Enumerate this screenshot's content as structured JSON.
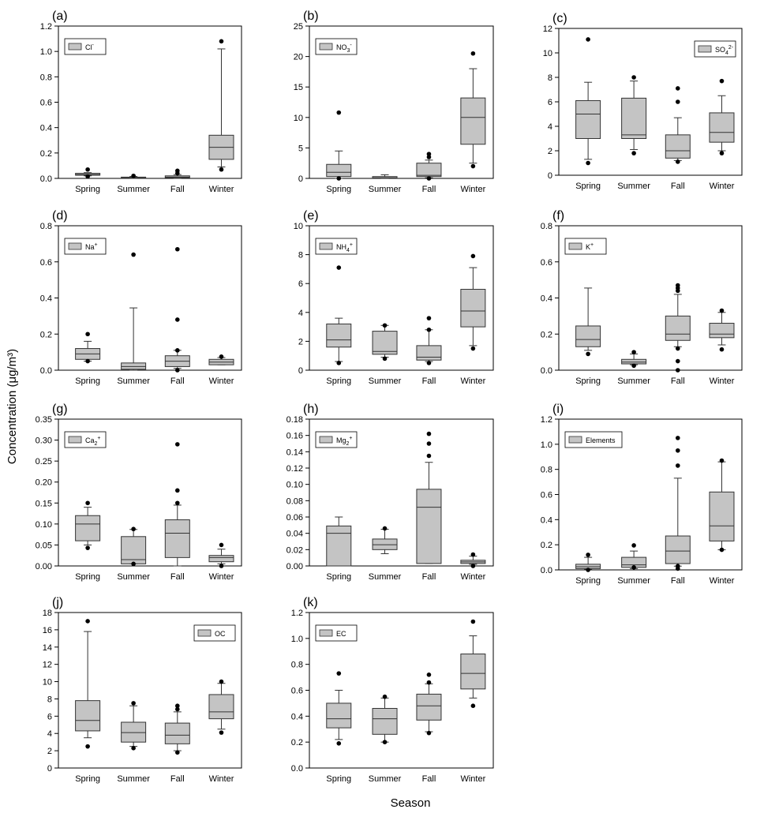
{
  "figure": {
    "ylabel": "Concentration (μg/m³)",
    "xlabel": "Season"
  },
  "chart_data": [
    {
      "panel": "(a)",
      "type": "box",
      "legend": {
        "base": "Cl",
        "sup": "-"
      },
      "legend_loc": "top-left",
      "categories": [
        "Spring",
        "Summer",
        "Fall",
        "Winter"
      ],
      "ylim": [
        0,
        1.2
      ],
      "yticks": [
        "0.0",
        "0.2",
        "0.4",
        "0.6",
        "0.8",
        "1.0",
        "1.2"
      ],
      "boxes": [
        {
          "min": 0.02,
          "q1": 0.025,
          "median": 0.03,
          "q3": 0.04,
          "max": 0.045,
          "outliers": [
            0.07,
            0.015
          ]
        },
        {
          "min": 0.0,
          "q1": 0.002,
          "median": 0.005,
          "q3": 0.01,
          "max": 0.015,
          "outliers": [
            0.02
          ]
        },
        {
          "min": 0.0,
          "q1": 0.005,
          "median": 0.01,
          "q3": 0.02,
          "max": 0.03,
          "outliers": [
            0.06,
            0.04
          ]
        },
        {
          "min": 0.09,
          "q1": 0.15,
          "median": 0.245,
          "q3": 0.34,
          "max": 1.02,
          "outliers": [
            1.08,
            0.07
          ]
        }
      ]
    },
    {
      "panel": "(b)",
      "type": "box",
      "legend": {
        "base": "NO",
        "sub": "3",
        "sup": "-"
      },
      "legend_loc": "top-left",
      "categories": [
        "Spring",
        "Summer",
        "Fall",
        "Winter"
      ],
      "ylim": [
        0,
        25
      ],
      "yticks": [
        "0",
        "5",
        "10",
        "15",
        "20",
        "25"
      ],
      "boxes": [
        {
          "min": 0.0,
          "q1": 0.3,
          "median": 1.0,
          "q3": 2.3,
          "max": 4.5,
          "outliers": [
            10.8,
            0.0
          ]
        },
        {
          "min": 0.0,
          "q1": 0.05,
          "median": 0.1,
          "q3": 0.3,
          "max": 0.6,
          "outliers": []
        },
        {
          "min": 0.1,
          "q1": 0.3,
          "median": 0.5,
          "q3": 2.5,
          "max": 3.0,
          "outliers": [
            4.0,
            3.5,
            0.0
          ]
        },
        {
          "min": 2.5,
          "q1": 5.6,
          "median": 10.0,
          "q3": 13.2,
          "max": 18.0,
          "outliers": [
            20.5,
            2.0
          ]
        }
      ]
    },
    {
      "panel": "(c)",
      "type": "box",
      "legend": {
        "base": "SO",
        "sub": "4",
        "sup": "2-"
      },
      "legend_loc": "top-right",
      "categories": [
        "Spring",
        "Summer",
        "Fall",
        "Winter"
      ],
      "ylim": [
        0,
        12
      ],
      "yticks": [
        "0",
        "2",
        "4",
        "6",
        "8",
        "10",
        "12"
      ],
      "boxes": [
        {
          "min": 1.3,
          "q1": 3.0,
          "median": 5.0,
          "q3": 6.1,
          "max": 7.6,
          "outliers": [
            11.1,
            1.0
          ]
        },
        {
          "min": 2.1,
          "q1": 3.0,
          "median": 3.3,
          "q3": 6.3,
          "max": 7.7,
          "outliers": [
            8.0,
            1.8
          ]
        },
        {
          "min": 1.2,
          "q1": 1.4,
          "median": 2.0,
          "q3": 3.3,
          "max": 4.7,
          "outliers": [
            7.1,
            6.0,
            1.1
          ]
        },
        {
          "min": 2.0,
          "q1": 2.7,
          "median": 3.5,
          "q3": 5.1,
          "max": 6.5,
          "outliers": [
            7.7,
            1.8
          ]
        }
      ]
    },
    {
      "panel": "(d)",
      "type": "box",
      "legend": {
        "base": "Na",
        "sup": "+"
      },
      "legend_loc": "top-left",
      "categories": [
        "Spring",
        "Summer",
        "Fall",
        "Winter"
      ],
      "ylim": [
        0,
        0.8
      ],
      "yticks": [
        "0.0",
        "0.2",
        "0.4",
        "0.6",
        "0.8"
      ],
      "boxes": [
        {
          "min": 0.05,
          "q1": 0.06,
          "median": 0.09,
          "q3": 0.12,
          "max": 0.16,
          "outliers": [
            0.2,
            0.05
          ]
        },
        {
          "min": 0.0,
          "q1": 0.005,
          "median": 0.02,
          "q3": 0.04,
          "max": 0.345,
          "outliers": [
            0.64
          ]
        },
        {
          "min": 0.01,
          "q1": 0.02,
          "median": 0.05,
          "q3": 0.08,
          "max": 0.11,
          "outliers": [
            0.67,
            0.28,
            0.11,
            0.0
          ]
        },
        {
          "min": 0.03,
          "q1": 0.03,
          "median": 0.045,
          "q3": 0.06,
          "max": 0.07,
          "outliers": [
            0.075
          ]
        }
      ]
    },
    {
      "panel": "(e)",
      "type": "box",
      "legend": {
        "base": "NH",
        "sub": "4",
        "sup": "+"
      },
      "legend_loc": "top-left",
      "categories": [
        "Spring",
        "Summer",
        "Fall",
        "Winter"
      ],
      "ylim": [
        0,
        10
      ],
      "yticks": [
        "0",
        "2",
        "4",
        "6",
        "8",
        "10"
      ],
      "boxes": [
        {
          "min": 0.6,
          "q1": 1.6,
          "median": 2.1,
          "q3": 3.2,
          "max": 3.6,
          "outliers": [
            7.1,
            0.5
          ]
        },
        {
          "min": 0.9,
          "q1": 1.1,
          "median": 1.3,
          "q3": 2.7,
          "max": 3.1,
          "outliers": [
            3.1,
            0.8
          ]
        },
        {
          "min": 0.6,
          "q1": 0.7,
          "median": 0.9,
          "q3": 1.7,
          "max": 2.8,
          "outliers": [
            3.6,
            2.8,
            0.5
          ]
        },
        {
          "min": 1.7,
          "q1": 3.0,
          "median": 4.1,
          "q3": 5.6,
          "max": 7.1,
          "outliers": [
            7.9,
            1.5
          ]
        }
      ]
    },
    {
      "panel": "(f)",
      "type": "box",
      "legend": {
        "base": "K",
        "sup": "+"
      },
      "legend_loc": "top-left",
      "categories": [
        "Spring",
        "Summer",
        "Fall",
        "Winter"
      ],
      "ylim": [
        0,
        0.8
      ],
      "yticks": [
        "0.0",
        "0.2",
        "0.4",
        "0.6",
        "0.8"
      ],
      "boxes": [
        {
          "min": 0.11,
          "q1": 0.13,
          "median": 0.17,
          "q3": 0.245,
          "max": 0.455,
          "outliers": [
            0.09
          ]
        },
        {
          "min": 0.03,
          "q1": 0.035,
          "median": 0.045,
          "q3": 0.06,
          "max": 0.09,
          "outliers": [
            0.1,
            0.025
          ]
        },
        {
          "min": 0.13,
          "q1": 0.165,
          "median": 0.2,
          "q3": 0.3,
          "max": 0.42,
          "outliers": [
            0.47,
            0.455,
            0.44,
            0.12,
            0.05,
            0.0
          ]
        },
        {
          "min": 0.14,
          "q1": 0.18,
          "median": 0.2,
          "q3": 0.26,
          "max": 0.32,
          "outliers": [
            0.33,
            0.115
          ]
        }
      ]
    },
    {
      "panel": "(g)",
      "type": "box",
      "legend": {
        "base": "Ca",
        "sub": "2",
        "sup": "+"
      },
      "legend_loc": "top-left",
      "categories": [
        "Spring",
        "Summer",
        "Fall",
        "Winter"
      ],
      "ylim": [
        0,
        0.35
      ],
      "yticks": [
        "0.00",
        "0.05",
        "0.10",
        "0.15",
        "0.20",
        "0.25",
        "0.30",
        "0.35"
      ],
      "boxes": [
        {
          "min": 0.05,
          "q1": 0.06,
          "median": 0.1,
          "q3": 0.12,
          "max": 0.14,
          "outliers": [
            0.15,
            0.043
          ]
        },
        {
          "min": 0.005,
          "q1": 0.005,
          "median": 0.015,
          "q3": 0.07,
          "max": 0.087,
          "outliers": [
            0.088,
            0.005
          ]
        },
        {
          "min": 0.0,
          "q1": 0.02,
          "median": 0.078,
          "q3": 0.11,
          "max": 0.145,
          "outliers": [
            0.29,
            0.18,
            0.15
          ]
        },
        {
          "min": 0.005,
          "q1": 0.01,
          "median": 0.02,
          "q3": 0.025,
          "max": 0.04,
          "outliers": [
            0.05,
            0.0
          ]
        }
      ]
    },
    {
      "panel": "(h)",
      "type": "box",
      "legend": {
        "base": "Mg",
        "sub": "2",
        "sup": "+"
      },
      "legend_loc": "top-left",
      "categories": [
        "Spring",
        "Summer",
        "Fall",
        "Winter"
      ],
      "ylim": [
        0,
        0.18
      ],
      "yticks": [
        "0.00",
        "0.02",
        "0.04",
        "0.06",
        "0.08",
        "0.10",
        "0.12",
        "0.14",
        "0.16",
        "0.18"
      ],
      "boxes": [
        {
          "min": 0.0,
          "q1": 0.0,
          "median": 0.04,
          "q3": 0.049,
          "max": 0.06,
          "outliers": []
        },
        {
          "min": 0.015,
          "q1": 0.02,
          "median": 0.026,
          "q3": 0.033,
          "max": 0.045,
          "outliers": [
            0.046
          ]
        },
        {
          "min": 0.003,
          "q1": 0.003,
          "median": 0.072,
          "q3": 0.094,
          "max": 0.127,
          "outliers": [
            0.162,
            0.15,
            0.135
          ]
        },
        {
          "min": 0.002,
          "q1": 0.003,
          "median": 0.005,
          "q3": 0.007,
          "max": 0.012,
          "outliers": [
            0.014,
            0.0
          ]
        }
      ]
    },
    {
      "panel": "(i)",
      "type": "box",
      "legend": {
        "base": "Elements"
      },
      "legend_loc": "top-left",
      "categories": [
        "Spring",
        "Summer",
        "Fall",
        "Winter"
      ],
      "ylim": [
        0,
        1.2
      ],
      "yticks": [
        "0.0",
        "0.2",
        "0.4",
        "0.6",
        "0.8",
        "1.0",
        "1.2"
      ],
      "boxes": [
        {
          "min": 0.005,
          "q1": 0.01,
          "median": 0.025,
          "q3": 0.045,
          "max": 0.1,
          "outliers": [
            0.12,
            0.0
          ]
        },
        {
          "min": 0.01,
          "q1": 0.02,
          "median": 0.04,
          "q3": 0.1,
          "max": 0.15,
          "outliers": [
            0.195,
            0.02
          ]
        },
        {
          "min": 0.03,
          "q1": 0.05,
          "median": 0.15,
          "q3": 0.27,
          "max": 0.73,
          "outliers": [
            1.05,
            0.95,
            0.83,
            0.03,
            0.01
          ]
        },
        {
          "min": 0.16,
          "q1": 0.23,
          "median": 0.35,
          "q3": 0.62,
          "max": 0.86,
          "outliers": [
            0.87,
            0.16
          ]
        }
      ]
    },
    {
      "panel": "(j)",
      "type": "box",
      "legend": {
        "base": "OC"
      },
      "legend_loc": "top-right",
      "categories": [
        "Spring",
        "Summer",
        "Fall",
        "Winter"
      ],
      "ylim": [
        0,
        18
      ],
      "yticks": [
        "0",
        "2",
        "4",
        "6",
        "8",
        "10",
        "12",
        "14",
        "16",
        "18"
      ],
      "boxes": [
        {
          "min": 3.5,
          "q1": 4.3,
          "median": 5.5,
          "q3": 7.8,
          "max": 15.8,
          "outliers": [
            17.0,
            2.5
          ]
        },
        {
          "min": 2.5,
          "q1": 3.0,
          "median": 4.1,
          "q3": 5.3,
          "max": 7.2,
          "outliers": [
            7.5,
            2.3
          ]
        },
        {
          "min": 2.0,
          "q1": 2.8,
          "median": 3.8,
          "q3": 5.2,
          "max": 6.5,
          "outliers": [
            7.2,
            6.8,
            1.8
          ]
        },
        {
          "min": 4.5,
          "q1": 5.7,
          "median": 6.5,
          "q3": 8.5,
          "max": 9.8,
          "outliers": [
            10.0,
            4.1
          ]
        }
      ]
    },
    {
      "panel": "(k)",
      "type": "box",
      "legend": {
        "base": "EC"
      },
      "legend_loc": "top-left",
      "categories": [
        "Spring",
        "Summer",
        "Fall",
        "Winter"
      ],
      "ylim": [
        0,
        1.2
      ],
      "yticks": [
        "0.0",
        "0.2",
        "0.4",
        "0.6",
        "0.8",
        "1.0",
        "1.2"
      ],
      "boxes": [
        {
          "min": 0.22,
          "q1": 0.31,
          "median": 0.38,
          "q3": 0.5,
          "max": 0.6,
          "outliers": [
            0.73,
            0.19
          ]
        },
        {
          "min": 0.2,
          "q1": 0.26,
          "median": 0.38,
          "q3": 0.46,
          "max": 0.54,
          "outliers": [
            0.55,
            0.2
          ]
        },
        {
          "min": 0.28,
          "q1": 0.37,
          "median": 0.48,
          "q3": 0.57,
          "max": 0.65,
          "outliers": [
            0.72,
            0.66,
            0.27
          ]
        },
        {
          "min": 0.54,
          "q1": 0.61,
          "median": 0.73,
          "q3": 0.88,
          "max": 1.02,
          "outliers": [
            1.13,
            0.48
          ]
        }
      ]
    }
  ]
}
